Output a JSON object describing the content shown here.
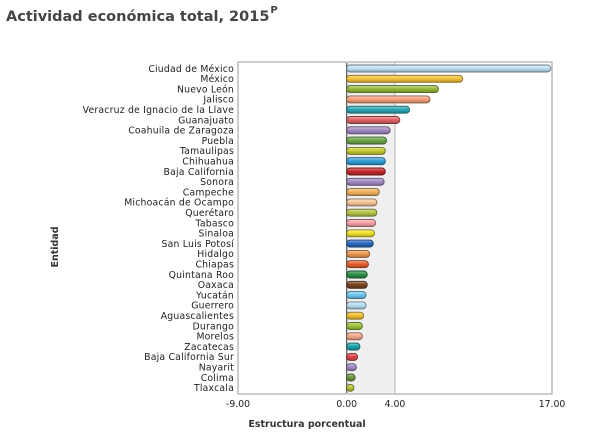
{
  "title": "Actividad económica total, 2015",
  "title_superscript": "P",
  "chart_data": {
    "type": "bar",
    "orientation": "horizontal",
    "ylabel": "Entidad",
    "xlabel": "Estructura porcentual",
    "xlim": [
      -9.0,
      17.0
    ],
    "xticks": [
      "-9.00",
      "0.00",
      "4.00",
      "17.00"
    ],
    "xtick_values": [
      -9.0,
      0.0,
      4.0,
      17.0
    ],
    "shaded_band": [
      0.0,
      4.0
    ],
    "grid": false,
    "legend": "none",
    "categories": [
      "Ciudad de México",
      "México",
      "Nuevo León",
      "Jalisco",
      "Veracruz de Ignacio de la Llave",
      "Guanajuato",
      "Coahuila de Zaragoza",
      "Puebla",
      "Tamaulipas",
      "Chihuahua",
      "Baja California",
      "Sonora",
      "Campeche",
      "Michoacán de Ocampo",
      "Querétaro",
      "Tabasco",
      "Sinaloa",
      "San Luis Potosí",
      "Hidalgo",
      "Chiapas",
      "Quintana Roo",
      "Oaxaca",
      "Yucatán",
      "Guerrero",
      "Aguascalientes",
      "Durango",
      "Morelos",
      "Zacatecas",
      "Baja California Sur",
      "Nayarit",
      "Colima",
      "Tlaxcala"
    ],
    "values": [
      16.9,
      9.6,
      7.6,
      6.9,
      5.2,
      4.4,
      3.6,
      3.3,
      3.2,
      3.2,
      3.2,
      3.1,
      2.7,
      2.5,
      2.5,
      2.4,
      2.3,
      2.2,
      1.9,
      1.8,
      1.7,
      1.7,
      1.6,
      1.6,
      1.4,
      1.3,
      1.3,
      1.1,
      0.9,
      0.8,
      0.7,
      0.6
    ],
    "colors": [
      "#bfe3f5",
      "#f5c33b",
      "#96b83a",
      "#f6a27c",
      "#2aa9b8",
      "#e06464",
      "#a58bc5",
      "#6aa54a",
      "#c6cc35",
      "#2e9fd9",
      "#c2272d",
      "#a58bc5",
      "#f0b25a",
      "#f9c89b",
      "#b9c449",
      "#f8a3a8",
      "#f3e12b",
      "#2a6cc0",
      "#f09a52",
      "#e8602e",
      "#2f8f46",
      "#7a4520",
      "#6fc8f0",
      "#b8dff3",
      "#f1c02f",
      "#9fc63b",
      "#f5a98b",
      "#1ba4a8",
      "#e0474d",
      "#a48ac6",
      "#6e9a3e",
      "#b9c83c"
    ]
  }
}
